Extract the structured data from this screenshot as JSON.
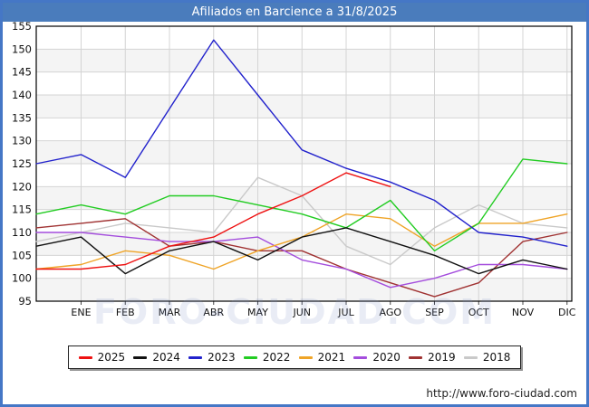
{
  "title": "Afiliados en Barcience a 31/8/2025",
  "watermark": "FORO-CIUDAD.COM",
  "footer": {
    "url": "http://www.foro-ciudad.com"
  },
  "colors": {
    "frame": "#4577c6",
    "titlebar_bg": "#4a7cbc",
    "titlebar_text": "#ffffff",
    "grid": "#d4d4d4",
    "band": "#f4f4f4",
    "plot_border": "#000000",
    "tick": "#444444",
    "label": "#111111"
  },
  "chart_data": {
    "type": "line",
    "title": "Afiliados en Barcience a 31/8/2025",
    "x_categories": [
      "ENE",
      "FEB",
      "MAR",
      "ABR",
      "MAY",
      "JUN",
      "JUL",
      "AGO",
      "SEP",
      "OCT",
      "NOV",
      "DIC"
    ],
    "ylim": [
      95,
      155
    ],
    "y_tick_step": 5,
    "grid": true,
    "legend_position": "bottom",
    "series": [
      {
        "name": "2025",
        "color": "#ee1111",
        "start": 102,
        "values": [
          102,
          103,
          107,
          109,
          114,
          118,
          123,
          120
        ]
      },
      {
        "name": "2024",
        "color": "#111111",
        "start": 107,
        "values": [
          109,
          101,
          106,
          108,
          104,
          109,
          111,
          108,
          105,
          101,
          104,
          102
        ]
      },
      {
        "name": "2023",
        "color": "#2222cc",
        "start": 125,
        "values": [
          127,
          122,
          137,
          152,
          140,
          128,
          124,
          121,
          117,
          110,
          109,
          107
        ]
      },
      {
        "name": "2022",
        "color": "#22cc22",
        "start": 114,
        "values": [
          116,
          114,
          118,
          118,
          116,
          114,
          111,
          117,
          106,
          112,
          126,
          125
        ]
      },
      {
        "name": "2021",
        "color": "#efa427",
        "start": 102,
        "values": [
          103,
          106,
          105,
          102,
          106,
          109,
          114,
          113,
          107,
          112,
          112,
          114
        ]
      },
      {
        "name": "2020",
        "color": "#a44ddd",
        "start": 110,
        "values": [
          110,
          109,
          108,
          108,
          109,
          104,
          102,
          98,
          100,
          103,
          103,
          102
        ]
      },
      {
        "name": "2019",
        "color": "#a03232",
        "start": 111,
        "values": [
          112,
          113,
          107,
          108,
          106,
          106,
          102,
          99,
          96,
          99,
          108,
          110
        ]
      },
      {
        "name": "2018",
        "color": "#c9c9c9",
        "start": 108,
        "values": [
          110,
          112,
          111,
          110,
          122,
          118,
          107,
          103,
          111,
          116,
          112,
          111
        ]
      }
    ]
  }
}
